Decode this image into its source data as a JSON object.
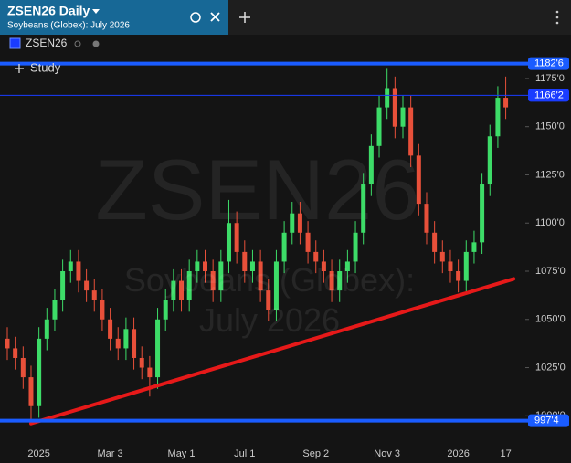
{
  "chart_data": {
    "type": "candlestick",
    "title": "ZSEN26 Daily",
    "subtitle": "Soybeans (Globex): July 2026",
    "watermark": [
      "ZSEN26",
      "Soybeans (Globex): July 2026"
    ],
    "study_button": "Study",
    "categories": [
      null,
      null,
      null,
      null,
      "2025",
      null,
      null,
      null,
      null,
      null,
      null,
      null,
      null,
      "Mar 3",
      null,
      null,
      null,
      null,
      null,
      null,
      null,
      null,
      "May 1",
      null,
      null,
      null,
      null,
      null,
      null,
      null,
      "Jul 1",
      null,
      null,
      null,
      null,
      null,
      null,
      null,
      null,
      "Sep 2",
      null,
      null,
      null,
      null,
      null,
      null,
      null,
      null,
      "Nov 3",
      null,
      null,
      null,
      null,
      null,
      null,
      null,
      null,
      "2026",
      null,
      null,
      null,
      null,
      null,
      "17"
    ],
    "series": [
      {
        "name": "ZSEN26",
        "color": "#1a3cff",
        "up_color": "#3ddc68",
        "down_color": "#e8503a",
        "open": [
          1040,
          1035,
          1030,
          1020,
          1005,
          1040,
          1050,
          1060,
          1075,
          1080,
          1070,
          1065,
          1060,
          1050,
          1040,
          1035,
          1045,
          1030,
          1025,
          1020,
          1050,
          1060,
          1070,
          1060,
          1075,
          1080,
          1075,
          1065,
          1080,
          1100,
          1085,
          1075,
          1080,
          1065,
          1055,
          1080,
          1095,
          1105,
          1095,
          1085,
          1080,
          1075,
          1065,
          1075,
          1080,
          1095,
          1120,
          1140,
          1160,
          1170,
          1150,
          1160,
          1135,
          1110,
          1095,
          1085,
          1080,
          1075,
          1070,
          1085,
          1090,
          1120,
          1145,
          1165
        ],
        "high": [
          1046,
          1041,
          1036,
          1026,
          1046,
          1056,
          1066,
          1081,
          1086,
          1086,
          1076,
          1071,
          1066,
          1056,
          1046,
          1051,
          1051,
          1036,
          1031,
          1056,
          1066,
          1076,
          1076,
          1081,
          1086,
          1086,
          1081,
          1086,
          1112,
          1106,
          1091,
          1086,
          1086,
          1071,
          1086,
          1101,
          1111,
          1111,
          1101,
          1091,
          1086,
          1081,
          1081,
          1086,
          1101,
          1126,
          1146,
          1166,
          1180,
          1176,
          1166,
          1166,
          1141,
          1116,
          1101,
          1091,
          1086,
          1081,
          1091,
          1096,
          1126,
          1151,
          1171,
          1176
        ],
        "low": [
          1029,
          1024,
          1014,
          998,
          999,
          1034,
          1044,
          1054,
          1069,
          1064,
          1059,
          1054,
          1044,
          1034,
          1029,
          1029,
          1024,
          1019,
          1010,
          1014,
          1044,
          1054,
          1054,
          1054,
          1069,
          1069,
          1059,
          1059,
          1074,
          1079,
          1069,
          1069,
          1059,
          1049,
          1049,
          1074,
          1089,
          1089,
          1079,
          1074,
          1069,
          1059,
          1059,
          1069,
          1074,
          1089,
          1114,
          1134,
          1154,
          1144,
          1144,
          1129,
          1104,
          1089,
          1079,
          1074,
          1069,
          1064,
          1064,
          1079,
          1084,
          1114,
          1139,
          1154
        ],
        "close": [
          1035,
          1030,
          1020,
          1005,
          1040,
          1050,
          1060,
          1075,
          1080,
          1070,
          1065,
          1060,
          1050,
          1040,
          1035,
          1045,
          1030,
          1025,
          1020,
          1050,
          1060,
          1070,
          1060,
          1075,
          1080,
          1075,
          1065,
          1080,
          1100,
          1085,
          1075,
          1080,
          1065,
          1055,
          1080,
          1095,
          1105,
          1095,
          1085,
          1080,
          1075,
          1065,
          1075,
          1080,
          1095,
          1120,
          1140,
          1160,
          1170,
          1150,
          1160,
          1135,
          1110,
          1095,
          1085,
          1080,
          1075,
          1070,
          1085,
          1090,
          1120,
          1145,
          1165,
          1160
        ]
      }
    ],
    "ylim": [
      988.3,
      1201.5
    ],
    "yticks": [
      {
        "value": 1000,
        "label": "1000'0"
      },
      {
        "value": 1025,
        "label": "1025'0"
      },
      {
        "value": 1050,
        "label": "1050'0"
      },
      {
        "value": 1075,
        "label": "1075'0"
      },
      {
        "value": 1100,
        "label": "1100'0"
      },
      {
        "value": 1125,
        "label": "1125'0"
      },
      {
        "value": 1150,
        "label": "1150'0"
      },
      {
        "value": 1175,
        "label": "1175'0"
      }
    ],
    "grid": false,
    "hlines": [
      {
        "value": 1182.75,
        "label": "1182'6",
        "style": "thick",
        "color": "#1a5cff"
      },
      {
        "value": 1166.25,
        "label": "1166'2",
        "style": "thin",
        "color": "#1a3cff"
      },
      {
        "value": 997.5,
        "label": "997'4",
        "style": "thick",
        "color": "#1a5cff"
      }
    ],
    "trendline": {
      "x": [
        3,
        64
      ],
      "y": [
        996,
        1071
      ],
      "color": "#e61919"
    }
  }
}
